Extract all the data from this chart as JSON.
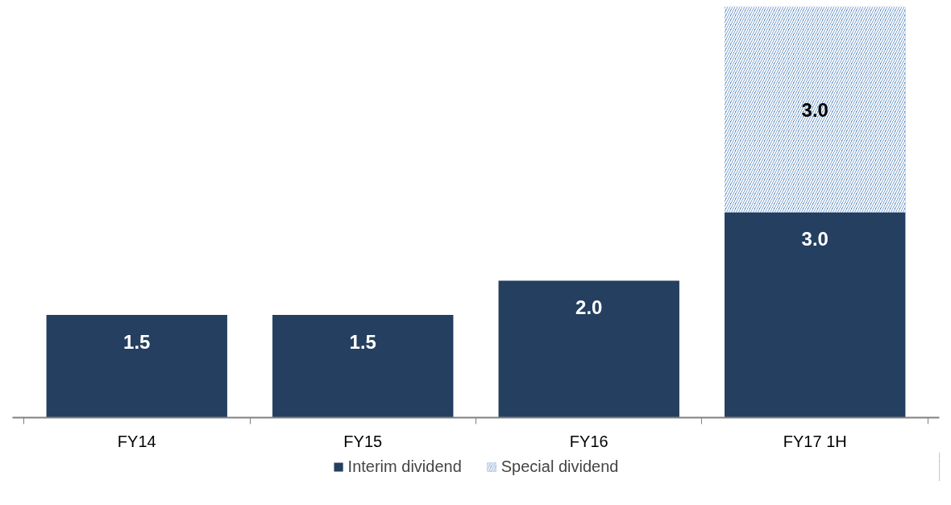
{
  "chart_data": {
    "type": "bar",
    "stacked": true,
    "categories": [
      "FY14",
      "FY15",
      "FY16",
      "FY17 1H"
    ],
    "series": [
      {
        "name": "Interim dividend",
        "color": "#243f60",
        "values": [
          1.5,
          1.5,
          2.0,
          3.0
        ],
        "value_labels": [
          "1.5",
          "1.5",
          "2.0",
          "3.0"
        ]
      },
      {
        "name": "Special dividend",
        "color": "#4f81bd",
        "values": [
          null,
          null,
          null,
          3.0
        ],
        "value_labels": [
          null,
          null,
          null,
          "3.0"
        ]
      }
    ],
    "legend": "bottom",
    "grid": false
  }
}
